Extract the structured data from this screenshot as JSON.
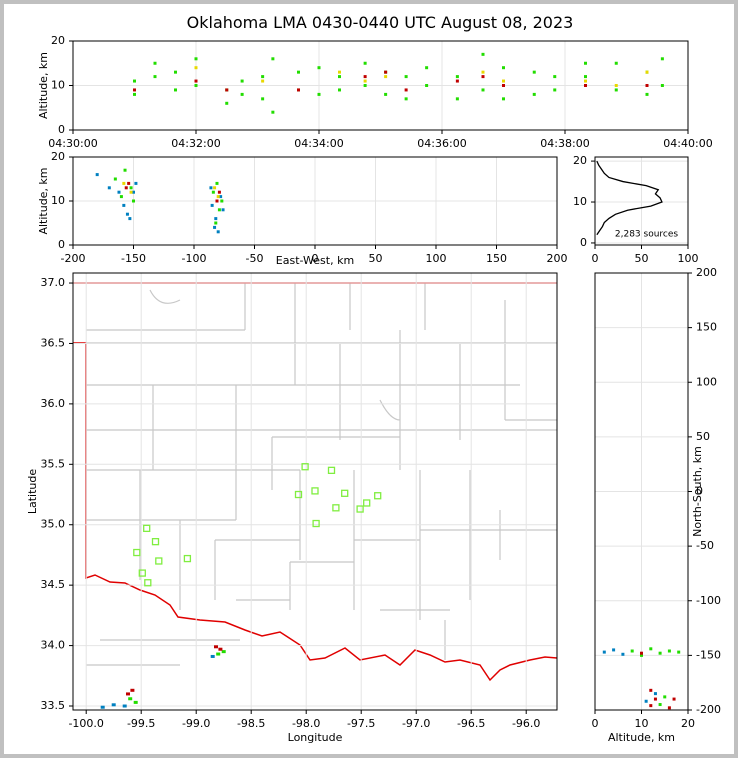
{
  "title": "Oklahoma LMA 0430-0440 UTC August 08, 2023",
  "chart_data": [
    {
      "type": "scatter",
      "ylabel": "Altitude, km",
      "xlim": [
        "04:30:00",
        "04:40:00"
      ],
      "xticks": [
        "04:30:00",
        "04:32:00",
        "04:34:00",
        "04:36:00",
        "04:38:00",
        "04:40:00"
      ],
      "ylim": [
        0,
        20
      ],
      "yticks": [
        0,
        10,
        20
      ],
      "grid": true,
      "series": [
        {
          "color": "#22dd00",
          "x": [
            "04:31:00",
            "04:31:00",
            "04:31:20",
            "04:31:20",
            "04:31:40",
            "04:31:40",
            "04:32:00",
            "04:32:00",
            "04:32:30",
            "04:32:30",
            "04:32:45",
            "04:32:45",
            "04:33:05",
            "04:33:05",
            "04:33:15",
            "04:33:15",
            "04:33:40",
            "04:33:40",
            "04:34:00",
            "04:34:00",
            "04:34:20",
            "04:34:20",
            "04:34:45",
            "04:34:45",
            "04:35:05",
            "04:35:05",
            "04:35:25",
            "04:35:25",
            "04:35:45",
            "04:35:45",
            "04:36:15",
            "04:36:15",
            "04:36:40",
            "04:36:40",
            "04:37:00",
            "04:37:00",
            "04:37:30",
            "04:37:30",
            "04:37:50",
            "04:37:50",
            "04:38:20",
            "04:38:20",
            "04:38:50",
            "04:38:50",
            "04:39:20",
            "04:39:20",
            "04:39:35",
            "04:39:35"
          ],
          "y": [
            11,
            8,
            15,
            12,
            13,
            9,
            16,
            10,
            9,
            6,
            8,
            11,
            12,
            7,
            16,
            4,
            13,
            9,
            14,
            8,
            12,
            9,
            15,
            10,
            13,
            8,
            12,
            7,
            14,
            10,
            12,
            7,
            17,
            9,
            14,
            7,
            13,
            8,
            12,
            9,
            15,
            12,
            15,
            9,
            13,
            8,
            16,
            10
          ]
        },
        {
          "color": "#e8d800",
          "x": [
            "04:32:00",
            "04:33:05",
            "04:34:20",
            "04:34:45",
            "04:35:05",
            "04:36:40",
            "04:37:00",
            "04:38:20",
            "04:38:50",
            "04:39:20"
          ],
          "y": [
            14,
            11,
            13,
            11,
            12,
            13,
            11,
            11,
            10,
            13
          ]
        },
        {
          "color": "#c00000",
          "x": [
            "04:31:00",
            "04:32:00",
            "04:32:30",
            "04:33:40",
            "04:34:45",
            "04:35:05",
            "04:35:25",
            "04:36:15",
            "04:36:40",
            "04:37:00",
            "04:38:20",
            "04:39:20"
          ],
          "y": [
            9,
            11,
            9,
            9,
            12,
            13,
            9,
            11,
            12,
            10,
            10,
            10
          ]
        }
      ]
    },
    {
      "type": "scatter",
      "xlabel": "East-West, km",
      "ylabel": "Altitude, km",
      "xlim": [
        -200,
        200
      ],
      "xticks": [
        -200,
        -150,
        -100,
        -50,
        0,
        50,
        100,
        150,
        200
      ],
      "ylim": [
        0,
        20
      ],
      "yticks": [
        0,
        10,
        20
      ],
      "grid": true,
      "series": [
        {
          "color": "#0080c0",
          "x": [
            -180,
            -170,
            -162,
            -158,
            -150,
            -155,
            -148,
            -153,
            -85,
            -82,
            -78,
            -80,
            -86,
            -76,
            -83
          ],
          "y": [
            16,
            13,
            12,
            9,
            12,
            7,
            14,
            6,
            9,
            6,
            11,
            3,
            13,
            8,
            4
          ]
        },
        {
          "color": "#22dd00",
          "x": [
            -165,
            -160,
            -152,
            -157,
            -150,
            -84,
            -79,
            -81,
            -77,
            -82
          ],
          "y": [
            15,
            11,
            13,
            17,
            10,
            12,
            8,
            14,
            10,
            5
          ]
        },
        {
          "color": "#e8d800",
          "x": [
            -158,
            -152,
            -80,
            -83
          ],
          "y": [
            14,
            12,
            11,
            13
          ]
        },
        {
          "color": "#c00000",
          "x": [
            -156,
            -154,
            -81,
            -79
          ],
          "y": [
            13,
            14,
            10,
            12
          ]
        }
      ]
    },
    {
      "type": "line",
      "orientation": "horizontal",
      "annotation": "2,283 sources",
      "xlim": [
        0,
        100
      ],
      "xticks": [
        0,
        50,
        100
      ],
      "ylim": [
        -0.5,
        21
      ],
      "yticks": [
        0,
        10,
        20
      ],
      "grid": true,
      "color": "#000000",
      "y": [
        2,
        3,
        4,
        5,
        6,
        7,
        8,
        9,
        10,
        11,
        12,
        13,
        14,
        15,
        16,
        17,
        18,
        19,
        20
      ],
      "values": [
        2,
        5,
        8,
        10,
        15,
        22,
        35,
        60,
        72,
        70,
        65,
        68,
        55,
        30,
        15,
        10,
        7,
        4,
        2
      ]
    },
    {
      "type": "map",
      "xlabel": "Longitude",
      "ylabel": "Latitude",
      "xlim": [
        -100.12,
        -95.72
      ],
      "xticks": [
        {
          "value": -100,
          "label": "-100.0"
        },
        {
          "value": -99.5,
          "label": "-99.5"
        },
        {
          "value": -99,
          "label": "-99.0"
        },
        {
          "value": -98.5,
          "label": "-98.5"
        },
        {
          "value": -98,
          "label": "-98.0"
        },
        {
          "value": -97.5,
          "label": "-97.5"
        },
        {
          "value": -97,
          "label": "-97.0"
        },
        {
          "value": -96.5,
          "label": "-96.5"
        },
        {
          "value": -96,
          "label": "-96.0"
        }
      ],
      "ylim": [
        33.467,
        37.083
      ],
      "yticks": [
        {
          "value": 33.5,
          "label": "33.5"
        },
        {
          "value": 34,
          "label": "34.0"
        },
        {
          "value": 34.5,
          "label": "34.5"
        },
        {
          "value": 35,
          "label": "35.0"
        },
        {
          "value": 35.5,
          "label": "35.5"
        },
        {
          "value": 36,
          "label": "36.0"
        },
        {
          "value": 36.5,
          "label": "36.5"
        },
        {
          "value": 37,
          "label": "37.0"
        }
      ],
      "grid": true,
      "stations": {
        "color": "#80ee40",
        "x": [
          -98.01,
          -97.77,
          -98.07,
          -97.92,
          -97.65,
          -97.35,
          -97.45,
          -97.73,
          -97.51,
          -97.91,
          -99.45,
          -99.37,
          -99.54,
          -99.08,
          -99.34,
          -99.49,
          -99.44
        ],
        "y": [
          35.48,
          35.45,
          35.25,
          35.28,
          35.26,
          35.24,
          35.18,
          35.14,
          35.13,
          35.01,
          34.97,
          34.86,
          34.77,
          34.72,
          34.7,
          34.6,
          34.52
        ]
      },
      "series": [
        {
          "color": "#0080c0",
          "x": [
            -99.85,
            -99.75,
            -99.65,
            -98.85
          ],
          "y": [
            33.49,
            33.51,
            33.5,
            33.91
          ]
        },
        {
          "color": "#22dd00",
          "x": [
            -99.6,
            -99.55,
            -98.8,
            -98.75
          ],
          "y": [
            33.56,
            33.53,
            33.93,
            33.95
          ]
        },
        {
          "color": "#c00000",
          "x": [
            -99.62,
            -99.58,
            -98.82,
            -98.78
          ],
          "y": [
            33.6,
            33.63,
            33.99,
            33.97
          ]
        }
      ]
    },
    {
      "type": "scatter",
      "xlabel": "Altitude, km",
      "ylabel": "North-South, km",
      "xlim": [
        0,
        20
      ],
      "xticks": [
        0,
        10,
        20
      ],
      "ylim": [
        -200,
        200
      ],
      "yticks": [
        -200,
        -150,
        -100,
        -50,
        0,
        50,
        100,
        150,
        200
      ],
      "grid": true,
      "series": [
        {
          "color": "#0080c0",
          "x": [
            2,
            4,
            6,
            11,
            13
          ],
          "y": [
            -147,
            -145,
            -149,
            -192,
            -185
          ]
        },
        {
          "color": "#22dd00",
          "x": [
            8,
            10,
            12,
            14,
            16,
            18,
            14,
            15
          ],
          "y": [
            -146,
            -150,
            -144,
            -148,
            -146,
            -147,
            -195,
            -188
          ]
        },
        {
          "color": "#c00000",
          "x": [
            10,
            12,
            13,
            16,
            12,
            17
          ],
          "y": [
            -148,
            -182,
            -190,
            -198,
            -196,
            -190
          ]
        }
      ]
    }
  ]
}
